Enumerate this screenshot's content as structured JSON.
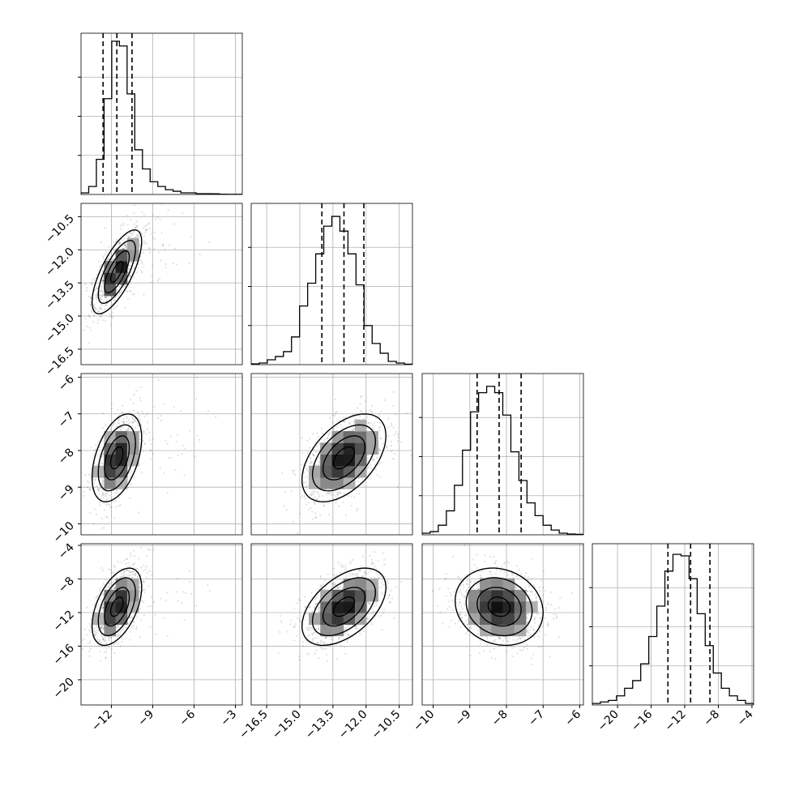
{
  "chart_data": {
    "type": "corner",
    "n_params": 4,
    "params": [
      {
        "range": [
          -14.2,
          -2.5
        ],
        "ticks": [
          -12,
          -9,
          -6,
          -3
        ],
        "tick_labels": [
          "−12",
          "−9",
          "−6",
          "−3"
        ],
        "quantiles": [
          -12.6,
          -11.6,
          -10.5
        ],
        "median": -11.6,
        "sd": 0.9,
        "hist_counts": [
          1,
          5,
          22,
          60,
          96,
          93,
          63,
          28,
          16,
          8,
          5,
          3,
          2,
          1,
          1,
          0.5,
          0.5,
          0.4,
          0.2,
          0.1,
          0.1
        ],
        "hist_ylim": [
          0,
          101
        ]
      },
      {
        "range": [
          -17.2,
          -9.9
        ],
        "ticks": [
          -16.5,
          -15.0,
          -13.5,
          -12.0,
          -10.5
        ],
        "tick_labels": [
          "−16.5",
          "−15.0",
          "−13.5",
          "−12.0",
          "−10.5"
        ],
        "quantiles": [
          -14.0,
          -13.0,
          -12.1
        ],
        "median": -13.0,
        "sd": 0.95,
        "hist_counts": [
          0.5,
          1,
          3,
          5,
          8,
          17,
          36,
          50,
          68,
          85,
          91,
          82,
          68,
          49,
          24,
          13,
          7,
          2,
          1,
          0.3
        ],
        "hist_ylim": [
          0,
          99
        ]
      },
      {
        "range": [
          -10.3,
          -5.9
        ],
        "ticks": [
          -10,
          -9,
          -8,
          -7,
          -6
        ],
        "tick_labels": [
          "−10",
          "−9",
          "−8",
          "−7",
          "−6"
        ],
        "quantiles": [
          -8.8,
          -8.2,
          -7.6
        ],
        "median": -8.2,
        "sd": 0.6,
        "hist_counts": [
          1,
          2,
          6,
          15,
          31,
          53,
          77,
          89,
          93,
          89,
          75,
          52,
          34,
          20,
          12,
          6,
          3,
          1,
          0.5,
          0.3
        ],
        "hist_ylim": [
          0,
          101
        ]
      },
      {
        "range": [
          -23,
          -3.8
        ],
        "ticks": [
          -20,
          -16,
          -12,
          -8,
          -4
        ],
        "tick_labels": [
          "−20",
          "−16",
          "−12",
          "−8",
          "−4"
        ],
        "quantiles": [
          -14.0,
          -11.3,
          -9.0
        ],
        "median": -11.3,
        "sd": 2.3,
        "hist_counts": [
          1,
          2,
          3,
          6,
          11,
          16,
          27,
          45,
          65,
          88,
          99,
          98,
          83,
          60,
          39,
          21,
          11,
          6,
          3,
          1
        ],
        "hist_ylim": [
          0,
          106
        ]
      }
    ],
    "correlations": {
      "1-0": 0.72,
      "2-0": 0.45,
      "2-1": 0.5,
      "3-0": 0.5,
      "3-1": 0.5,
      "3-2": -0.15
    },
    "contour_levels": [
      "0.5 sigma",
      "1 sigma",
      "1.5 sigma",
      "2 sigma"
    ],
    "grid": true,
    "histogram_style": "step",
    "quantile_lines": "dashed"
  }
}
